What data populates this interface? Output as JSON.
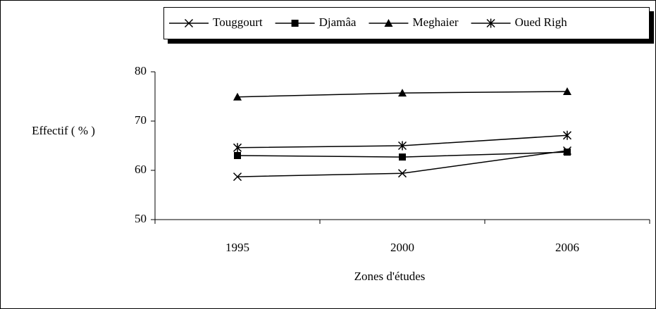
{
  "chart_data": {
    "type": "line",
    "categories": [
      "1995",
      "2000",
      "2006"
    ],
    "series": [
      {
        "name": "Touggourt",
        "color": "#000000",
        "marker": "x",
        "values": [
          58.7,
          59.4,
          64.0
        ]
      },
      {
        "name": "Djamâa",
        "color": "#000000",
        "marker": "square",
        "values": [
          63.0,
          62.7,
          63.7
        ]
      },
      {
        "name": "Meghaier",
        "color": "#000000",
        "marker": "triangle",
        "values": [
          74.9,
          75.7,
          76.0
        ]
      },
      {
        "name": "Oued Righ",
        "color": "#000000",
        "marker": "star",
        "values": [
          64.6,
          65.0,
          67.1
        ]
      }
    ],
    "ylim": [
      50,
      80
    ],
    "yticks": [
      50,
      60,
      70,
      80
    ],
    "ylabel": "Effectif ( % )",
    "xlabel": "Zones d'études",
    "legend": "top"
  }
}
